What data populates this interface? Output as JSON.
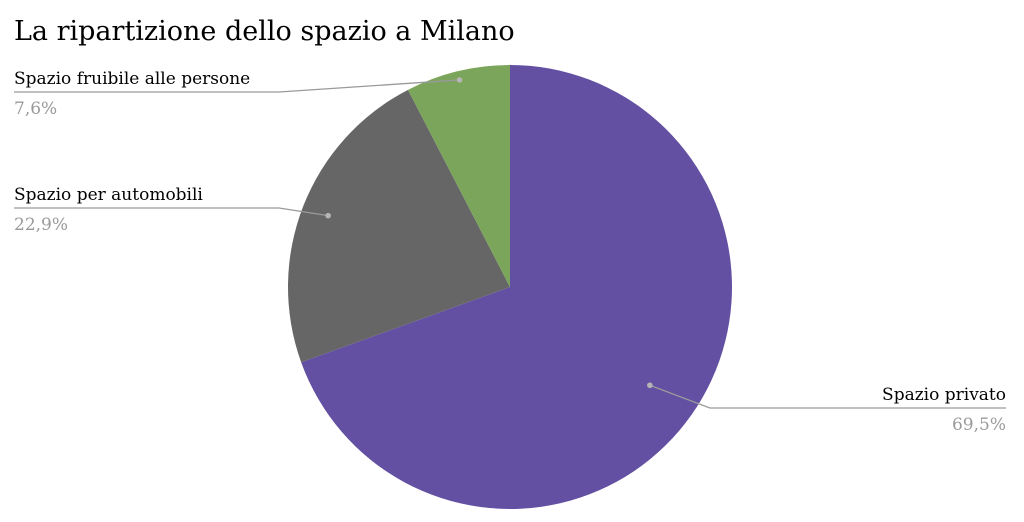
{
  "chart_data": {
    "type": "pie",
    "title": "La ripartizione dello spazio a Milano",
    "slices": [
      {
        "label": "Spazio privato",
        "value": 69.5,
        "value_label": "69,5%",
        "color": "#6350a2"
      },
      {
        "label": "Spazio per automobili",
        "value": 22.9,
        "value_label": "22,9%",
        "color": "#666666"
      },
      {
        "label": "Spazio fruibile alle persone",
        "value": 7.6,
        "value_label": "7,6%",
        "color": "#7aa55a"
      }
    ],
    "start_angle": "12 o'clock",
    "direction": "clockwise",
    "legend": "none",
    "label_style": "outside with leader lines"
  }
}
